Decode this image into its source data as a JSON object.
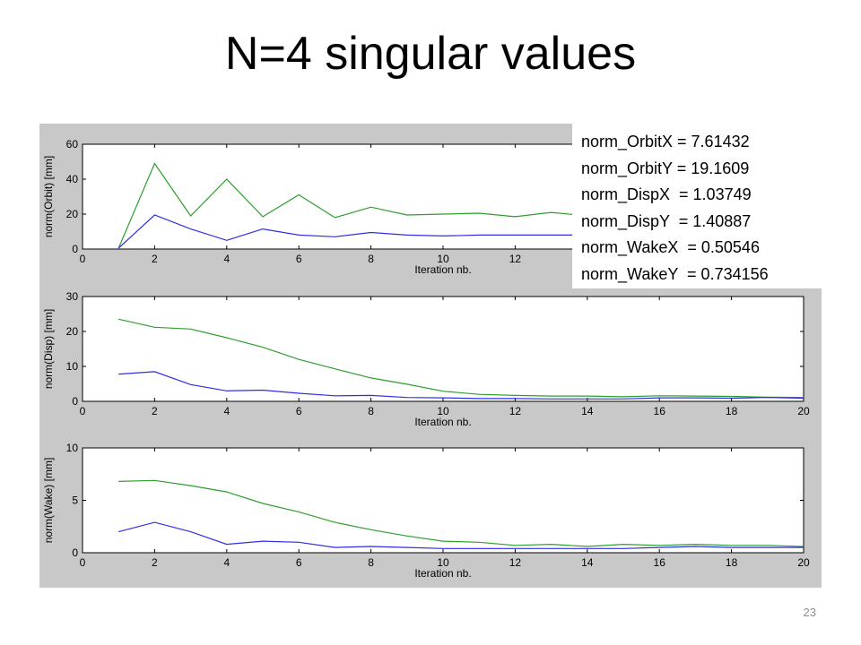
{
  "slide": {
    "title": "N=4 singular values",
    "page_number": "23"
  },
  "norms": [
    "norm_OrbitX = 7.61432",
    "norm_OrbitY = 19.1609",
    "norm_DispX  = 1.03749",
    "norm_DispY  = 1.40887",
    "norm_WakeX  = 0.50546",
    "norm_WakeY  = 0.734156"
  ],
  "colors": {
    "green": "#2e9e2e",
    "blue": "#2e2ee6",
    "figure_bg": "#c8c8c8"
  },
  "chart_data": [
    {
      "type": "line",
      "xlabel": "Iteration nb.",
      "ylabel": "norm(Orbit) [mm]",
      "xlim": [
        0,
        20
      ],
      "ylim": [
        0,
        60
      ],
      "xticks": [
        0,
        2,
        4,
        6,
        8,
        10,
        12
      ],
      "yticks": [
        0,
        20,
        40,
        60
      ],
      "x": [
        1,
        2,
        3,
        4,
        5,
        6,
        7,
        8,
        9,
        10,
        11,
        12,
        13,
        14
      ],
      "series": [
        {
          "color": "green",
          "values": [
            0.5,
            49,
            19,
            40,
            18.5,
            31,
            18,
            24,
            19.5,
            20,
            20.5,
            18.5,
            21,
            19
          ]
        },
        {
          "color": "blue",
          "values": [
            0.5,
            19.5,
            11.5,
            5,
            11.5,
            8,
            7,
            9.5,
            8,
            7.5,
            8,
            8,
            8,
            8
          ]
        }
      ]
    },
    {
      "type": "line",
      "xlabel": "Iteration nb.",
      "ylabel": "norm(Disp) [mm]",
      "xlim": [
        0,
        20
      ],
      "ylim": [
        0,
        30
      ],
      "xticks": [
        0,
        2,
        4,
        6,
        8,
        10,
        12,
        14,
        16,
        18,
        20
      ],
      "yticks": [
        0,
        10,
        20,
        30
      ],
      "x": [
        1,
        2,
        3,
        4,
        5,
        6,
        7,
        8,
        9,
        10,
        11,
        12,
        13,
        14,
        15,
        16,
        17,
        18,
        19,
        20
      ],
      "series": [
        {
          "color": "green",
          "values": [
            23.5,
            21.2,
            20.7,
            18.2,
            15.5,
            12,
            9.3,
            6.7,
            4.9,
            2.9,
            2,
            1.7,
            1.5,
            1.5,
            1.3,
            1.6,
            1.5,
            1.4,
            1.2,
            1.1
          ]
        },
        {
          "color": "blue",
          "values": [
            7.8,
            8.5,
            4.8,
            3,
            3.2,
            2.3,
            1.6,
            1.7,
            1.1,
            1,
            0.8,
            0.8,
            0.7,
            0.7,
            0.7,
            1,
            1,
            0.9,
            1.1,
            0.9
          ]
        }
      ]
    },
    {
      "type": "line",
      "xlabel": "Iteration nb.",
      "ylabel": "norm(Wake) [mm]",
      "xlim": [
        0,
        20
      ],
      "ylim": [
        0,
        10
      ],
      "xticks": [
        0,
        2,
        4,
        6,
        8,
        10,
        12,
        14,
        16,
        18,
        20
      ],
      "yticks": [
        0,
        5,
        10
      ],
      "x": [
        1,
        2,
        3,
        4,
        5,
        6,
        7,
        8,
        9,
        10,
        11,
        12,
        13,
        14,
        15,
        16,
        17,
        18,
        19,
        20
      ],
      "series": [
        {
          "color": "green",
          "values": [
            6.8,
            6.9,
            6.4,
            5.8,
            4.7,
            3.9,
            2.9,
            2.2,
            1.6,
            1.1,
            1,
            0.7,
            0.8,
            0.6,
            0.8,
            0.7,
            0.8,
            0.7,
            0.7,
            0.6
          ]
        },
        {
          "color": "blue",
          "values": [
            2,
            2.9,
            2,
            0.8,
            1.1,
            1,
            0.5,
            0.6,
            0.5,
            0.4,
            0.4,
            0.4,
            0.4,
            0.4,
            0.4,
            0.5,
            0.6,
            0.5,
            0.5,
            0.5
          ]
        }
      ]
    }
  ]
}
